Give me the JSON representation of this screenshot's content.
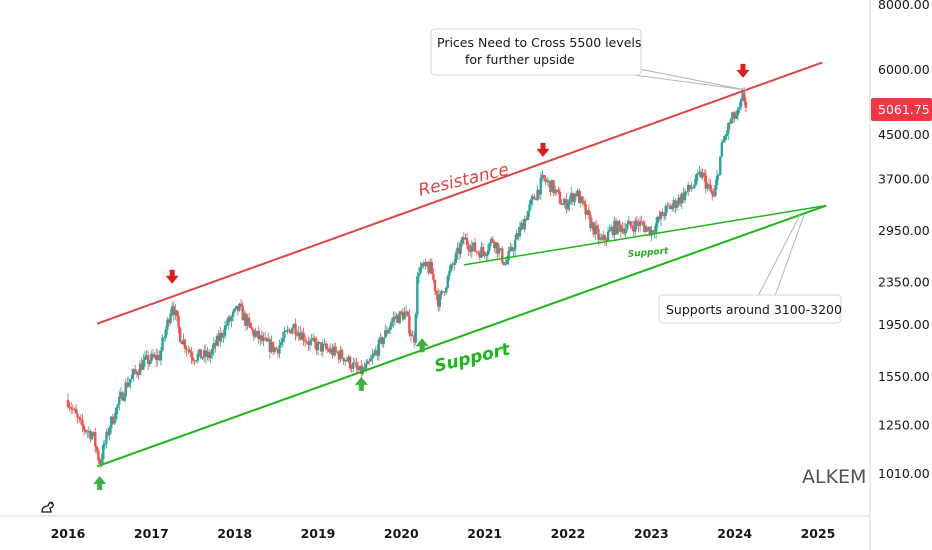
{
  "chart_data": {
    "type": "candlestick",
    "symbol": "ALKEM",
    "last_price": "5061.75",
    "y_scale": "log",
    "y_ticks": [
      "8000.00",
      "6000.00",
      "4500.00",
      "3700.00",
      "2950.00",
      "2350.00",
      "1950.00",
      "1550.00",
      "1250.00",
      "1010.00"
    ],
    "x_ticks": [
      "2016",
      "2017",
      "2018",
      "2019",
      "2020",
      "2021",
      "2022",
      "2023",
      "2024",
      "2025"
    ],
    "x_range": [
      2015.7,
      2025.6
    ],
    "approx_price_path": [
      [
        2016.0,
        1400
      ],
      [
        2016.15,
        1250
      ],
      [
        2016.3,
        1200
      ],
      [
        2016.38,
        1060
      ],
      [
        2016.5,
        1250
      ],
      [
        2016.7,
        1500
      ],
      [
        2016.9,
        1650
      ],
      [
        2017.1,
        1700
      ],
      [
        2017.25,
        2150
      ],
      [
        2017.35,
        1850
      ],
      [
        2017.5,
        1700
      ],
      [
        2017.7,
        1700
      ],
      [
        2017.9,
        1950
      ],
      [
        2018.05,
        2100
      ],
      [
        2018.2,
        1900
      ],
      [
        2018.35,
        1800
      ],
      [
        2018.5,
        1750
      ],
      [
        2018.7,
        1950
      ],
      [
        2018.9,
        1800
      ],
      [
        2019.1,
        1750
      ],
      [
        2019.3,
        1700
      ],
      [
        2019.5,
        1580
      ],
      [
        2019.6,
        1620
      ],
      [
        2019.75,
        1800
      ],
      [
        2019.9,
        2000
      ],
      [
        2020.05,
        2050
      ],
      [
        2020.15,
        1800
      ],
      [
        2020.2,
        2500
      ],
      [
        2020.35,
        2500
      ],
      [
        2020.45,
        2150
      ],
      [
        2020.6,
        2500
      ],
      [
        2020.75,
        2850
      ],
      [
        2020.9,
        2700
      ],
      [
        2021.0,
        2700
      ],
      [
        2021.1,
        2850
      ],
      [
        2021.25,
        2550
      ],
      [
        2021.4,
        2900
      ],
      [
        2021.55,
        3300
      ],
      [
        2021.7,
        3700
      ],
      [
        2021.8,
        3600
      ],
      [
        2021.95,
        3300
      ],
      [
        2022.1,
        3500
      ],
      [
        2022.25,
        3100
      ],
      [
        2022.4,
        2800
      ],
      [
        2022.55,
        3000
      ],
      [
        2022.7,
        3000
      ],
      [
        2022.85,
        3050
      ],
      [
        2023.0,
        2950
      ],
      [
        2023.15,
        3200
      ],
      [
        2023.3,
        3350
      ],
      [
        2023.5,
        3600
      ],
      [
        2023.6,
        3800
      ],
      [
        2023.75,
        3400
      ],
      [
        2023.85,
        4300
      ],
      [
        2023.95,
        4800
      ],
      [
        2024.05,
        4950
      ],
      [
        2024.1,
        5350
      ],
      [
        2024.15,
        5061.75
      ]
    ],
    "annotations": [
      {
        "type": "trendline",
        "label": "Resistance",
        "from": [
          2016.35,
          1960
        ],
        "to": [
          2025.05,
          6200
        ]
      },
      {
        "type": "trendline",
        "label": "Support",
        "from": [
          2016.35,
          1045
        ],
        "to": [
          2025.1,
          3300
        ]
      },
      {
        "type": "trendline",
        "label": "Support",
        "from": [
          2020.75,
          2540
        ],
        "to": [
          2025.1,
          3300
        ]
      },
      {
        "type": "arrow-down",
        "at": [
          2017.25,
          2400
        ]
      },
      {
        "type": "arrow-down",
        "at": [
          2021.7,
          4200
        ]
      },
      {
        "type": "arrow-down",
        "at": [
          2024.1,
          5950
        ]
      },
      {
        "type": "arrow-up",
        "at": [
          2016.38,
          975
        ]
      },
      {
        "type": "arrow-up",
        "at": [
          2019.52,
          1510
        ]
      },
      {
        "type": "arrow-up",
        "at": [
          2020.25,
          1790
        ]
      }
    ],
    "callouts": [
      {
        "lines": [
          "Prices Need to Cross 5500 levels",
          "for further upside"
        ]
      },
      {
        "lines": [
          "Supports around 3100-3200"
        ]
      }
    ]
  }
}
